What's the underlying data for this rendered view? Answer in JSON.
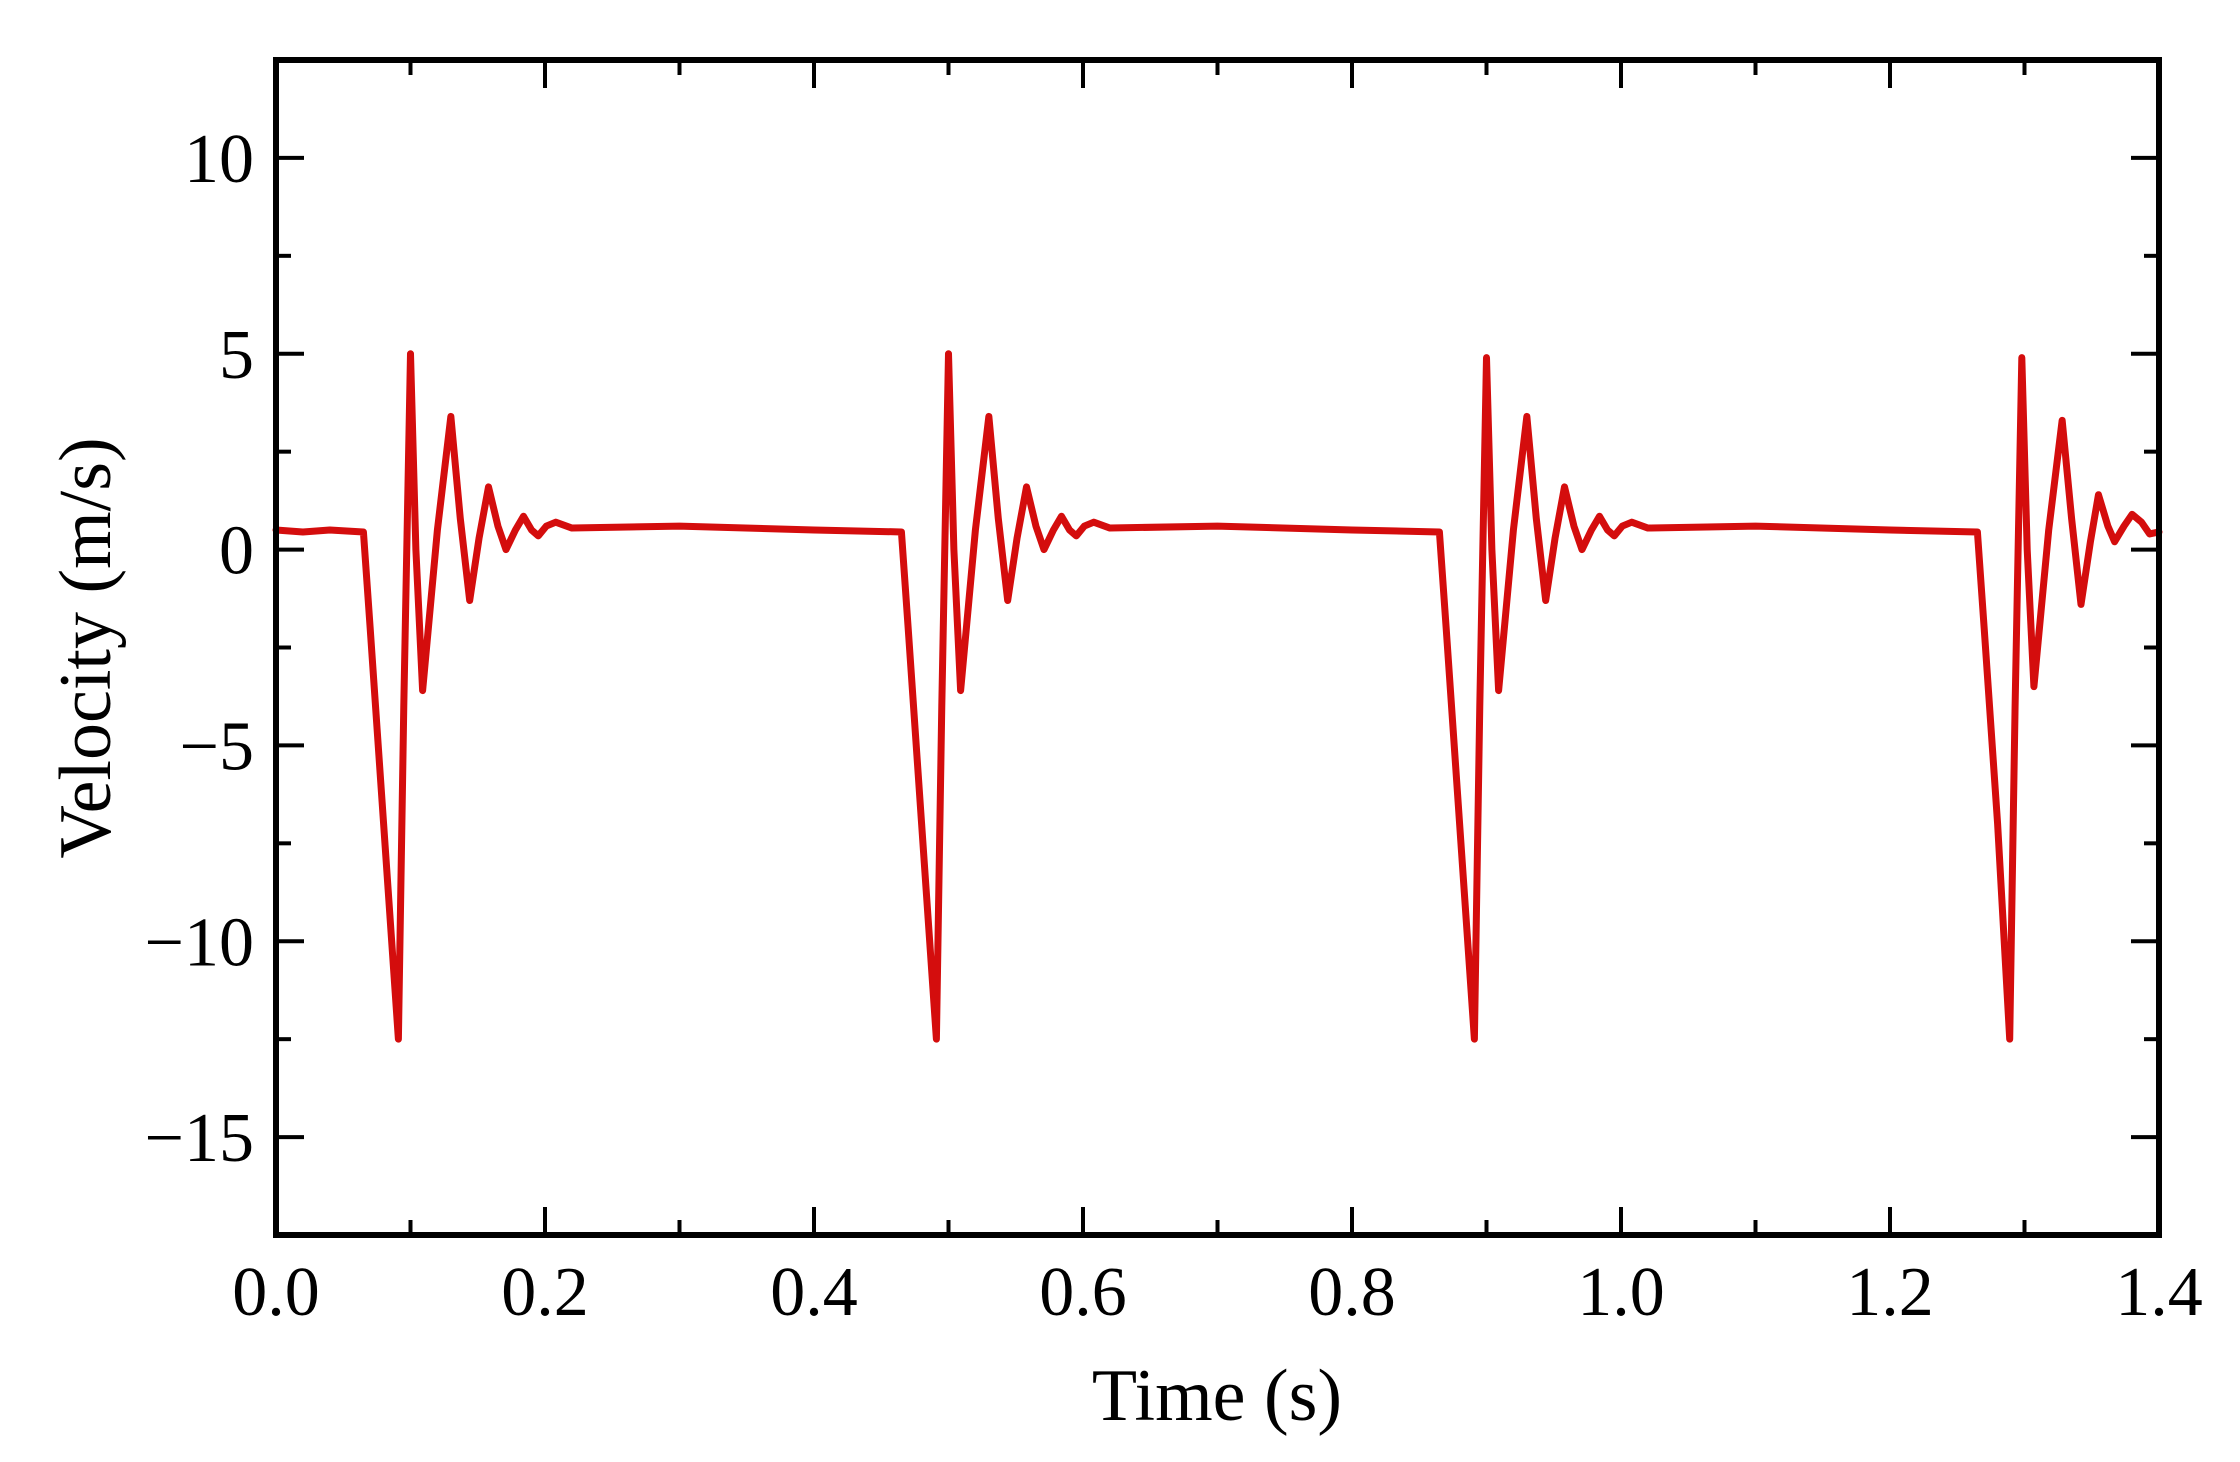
{
  "chart_data": {
    "type": "line",
    "xlabel": "Time (s)",
    "ylabel": "Velocity (m/s)",
    "xlim": [
      0,
      1.4
    ],
    "ylim": [
      -17.5,
      12.5
    ],
    "xticks": [
      {
        "value": 0,
        "label": "0.0"
      },
      {
        "value": 0.2,
        "label": "0.2"
      },
      {
        "value": 0.4,
        "label": "0.4"
      },
      {
        "value": 0.6,
        "label": "0.6"
      },
      {
        "value": 0.8,
        "label": "0.8"
      },
      {
        "value": 1.0,
        "label": "1.0"
      },
      {
        "value": 1.2,
        "label": "1.2"
      },
      {
        "value": 1.4,
        "label": "1.4"
      }
    ],
    "yticks": [
      {
        "value": -15,
        "label": "−15"
      },
      {
        "value": -10,
        "label": "−10"
      },
      {
        "value": -5,
        "label": "−5"
      },
      0,
      5,
      10
    ],
    "xminorticks": [
      0.1,
      0.3,
      0.5,
      0.7,
      0.9,
      1.1,
      1.3
    ],
    "yminorticks": [
      -17.5,
      -12.5,
      -7.5,
      -2.5,
      2.5,
      7.5,
      12.5
    ],
    "color": "#d40d0d",
    "x": [
      0,
      0.02,
      0.04,
      0.065,
      0.07,
      0.08,
      0.091,
      0.095,
      0.1,
      0.104,
      0.109,
      0.12,
      0.13,
      0.137,
      0.144,
      0.151,
      0.158,
      0.165,
      0.171,
      0.178,
      0.184,
      0.19,
      0.195,
      0.201,
      0.208,
      0.22,
      0.3,
      0.4,
      0.465,
      0.47,
      0.48,
      0.491,
      0.495,
      0.5,
      0.504,
      0.509,
      0.52,
      0.53,
      0.537,
      0.544,
      0.551,
      0.558,
      0.565,
      0.571,
      0.578,
      0.584,
      0.59,
      0.595,
      0.601,
      0.608,
      0.62,
      0.7,
      0.8,
      0.865,
      0.87,
      0.88,
      0.891,
      0.895,
      0.9,
      0.904,
      0.909,
      0.92,
      0.93,
      0.937,
      0.944,
      0.951,
      0.958,
      0.965,
      0.971,
      0.978,
      0.984,
      0.99,
      0.995,
      1.001,
      1.008,
      1.02,
      1.1,
      1.2,
      1.265,
      1.27,
      1.28,
      1.289,
      1.293,
      1.298,
      1.302,
      1.307,
      1.318,
      1.328,
      1.335,
      1.342,
      1.349,
      1.355,
      1.362,
      1.367,
      1.374,
      1.38,
      1.387,
      1.393,
      1.4
    ],
    "values": [
      0.5,
      0.45,
      0.5,
      0.45,
      -2,
      -7,
      -12.5,
      -4,
      5,
      0,
      -3.6,
      0.5,
      3.4,
      0.8,
      -1.3,
      0.3,
      1.6,
      0.6,
      0,
      0.5,
      0.85,
      0.5,
      0.35,
      0.6,
      0.7,
      0.55,
      0.6,
      0.5,
      0.45,
      -2,
      -7,
      -12.5,
      -4,
      5,
      0,
      -3.6,
      0.5,
      3.4,
      0.8,
      -1.3,
      0.3,
      1.6,
      0.6,
      0,
      0.5,
      0.85,
      0.5,
      0.35,
      0.6,
      0.7,
      0.55,
      0.6,
      0.5,
      0.45,
      -2,
      -7,
      -12.5,
      -4,
      4.9,
      0,
      -3.6,
      0.5,
      3.4,
      0.8,
      -1.3,
      0.3,
      1.6,
      0.6,
      0,
      0.5,
      0.85,
      0.5,
      0.35,
      0.6,
      0.7,
      0.55,
      0.6,
      0.5,
      0.45,
      -2,
      -7,
      -12.5,
      -4,
      4.9,
      0,
      -3.5,
      0.5,
      3.3,
      0.8,
      -1.4,
      0.2,
      1.4,
      0.6,
      0.2,
      0.6,
      0.9,
      0.7,
      0.4,
      0.45
    ]
  }
}
